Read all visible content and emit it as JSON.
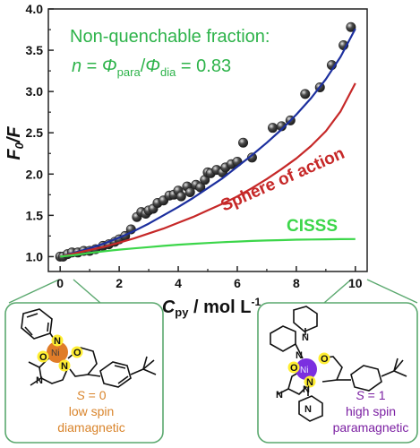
{
  "colors": {
    "data_points": "#4a4a4a",
    "fit_total": "#1c2f9e",
    "sphere_of_action": "#c62828",
    "cisss": "#3cd64a",
    "annotation_green": "#2db34a",
    "callout_border": "#5aa86e",
    "left_complex_text": "#d9842b",
    "right_complex_text": "#7b1fa2",
    "ni_left": "#e07c28",
    "ni_right": "#7b2fe0",
    "highlight_atom": "#ffee33"
  },
  "chart_data": {
    "type": "scatter",
    "x_label_main": "C",
    "x_label_sub": "py",
    "x_label_rest": " / mol L",
    "x_label_sup": "-1",
    "y_label_main": "F",
    "y_label_sub": "0",
    "y_label_rest": "/F",
    "xlim": [
      -0.4,
      10.4
    ],
    "ylim": [
      0.82,
      4.0
    ],
    "x_ticks": [
      "0",
      "2",
      "4",
      "6",
      "8",
      "10"
    ],
    "y_ticks": [
      "1.0",
      "1.5",
      "2.0",
      "2.5",
      "3.0",
      "3.5",
      "4.0"
    ],
    "series": [
      {
        "kind": "points",
        "x": [
          0.0,
          0.1,
          0.25,
          0.4,
          0.6,
          0.8,
          1.0,
          1.2,
          1.45,
          1.65,
          1.85,
          2.0,
          2.2,
          2.4,
          2.6,
          2.75,
          2.9,
          3.0,
          3.15,
          3.3,
          3.5,
          3.7,
          3.85,
          4.0,
          4.1,
          4.3,
          4.4,
          4.6,
          4.75,
          4.9,
          5.0,
          5.1,
          5.3,
          5.5,
          5.6,
          5.8,
          6.0,
          6.2,
          6.5,
          7.2,
          7.5,
          7.8,
          8.3,
          8.8,
          9.2,
          9.6,
          9.85
        ],
        "y": [
          1.0,
          1.0,
          1.03,
          1.05,
          1.05,
          1.07,
          1.07,
          1.09,
          1.13,
          1.15,
          1.18,
          1.21,
          1.25,
          1.33,
          1.48,
          1.54,
          1.52,
          1.56,
          1.58,
          1.65,
          1.68,
          1.74,
          1.75,
          1.8,
          1.73,
          1.85,
          1.78,
          1.87,
          1.84,
          1.93,
          2.02,
          2.01,
          2.05,
          2.02,
          2.08,
          2.12,
          2.15,
          2.38,
          2.2,
          2.56,
          2.58,
          2.65,
          2.97,
          3.05,
          3.32,
          3.56,
          3.78
        ]
      },
      {
        "kind": "line",
        "x": [
          0,
          0.5,
          1,
          1.5,
          2,
          2.5,
          3,
          3.5,
          4,
          4.5,
          5,
          5.5,
          6,
          6.5,
          7,
          7.5,
          8,
          8.5,
          9,
          9.5,
          10
        ],
        "y": [
          1.0,
          1.05,
          1.1,
          1.16,
          1.23,
          1.31,
          1.4,
          1.5,
          1.6,
          1.71,
          1.83,
          1.95,
          2.09,
          2.23,
          2.38,
          2.54,
          2.72,
          2.92,
          3.15,
          3.42,
          3.76
        ]
      },
      {
        "kind": "line",
        "x": [
          0,
          0.5,
          1,
          1.5,
          2,
          2.5,
          3,
          3.5,
          4,
          4.5,
          5,
          5.5,
          6,
          6.5,
          7,
          7.5,
          8,
          8.5,
          9,
          9.5,
          10
        ],
        "y": [
          1.0,
          1.04,
          1.08,
          1.12,
          1.17,
          1.22,
          1.28,
          1.34,
          1.41,
          1.48,
          1.56,
          1.64,
          1.73,
          1.83,
          1.94,
          2.06,
          2.19,
          2.34,
          2.52,
          2.76,
          3.1
        ]
      },
      {
        "kind": "line",
        "x": [
          0,
          0.5,
          1,
          1.5,
          2,
          2.5,
          3,
          3.5,
          4,
          4.5,
          5,
          5.5,
          6,
          6.5,
          7,
          7.5,
          8,
          8.5,
          9,
          9.5,
          10
        ],
        "y": [
          1.0,
          1.02,
          1.045,
          1.065,
          1.085,
          1.1,
          1.115,
          1.13,
          1.145,
          1.155,
          1.165,
          1.175,
          1.183,
          1.19,
          1.196,
          1.2,
          1.205,
          1.208,
          1.21,
          1.212,
          1.213
        ]
      }
    ],
    "annotation_title": "Non-quenchable fraction:",
    "annotation_n": "n",
    "annotation_eq": " = ",
    "annotation_phi1": "Φ",
    "annotation_phi1_sub": "para",
    "annotation_slash": "/",
    "annotation_phi2": "Φ",
    "annotation_phi2_sub": "dia",
    "annotation_value": " = 0.83",
    "label_sphere": "Sphere of action",
    "label_cisss": "CISSS"
  },
  "left_complex": {
    "spin_S": "S",
    "spin_value": " = 0",
    "line2": "low spin",
    "line3": "diamagnetic",
    "metal": "Ni",
    "atoms": [
      "N",
      "O",
      "O",
      "N",
      "N"
    ]
  },
  "right_complex": {
    "spin_S": "S",
    "spin_value": " = 1",
    "line2": "high spin",
    "line3": "paramagnetic",
    "metal": "Ni",
    "atoms": [
      "N",
      "N",
      "N",
      "O",
      "O",
      "N",
      "N",
      "N"
    ]
  }
}
